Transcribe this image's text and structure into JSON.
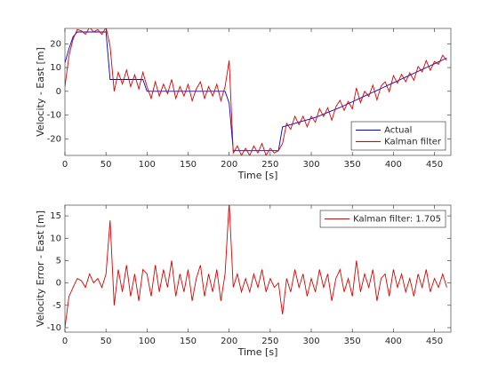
{
  "chart_data": [
    {
      "type": "line",
      "xlabel": "Time [s]",
      "ylabel": "Velocity - East [m]",
      "x": [
        0,
        5,
        10,
        15,
        20,
        25,
        30,
        35,
        40,
        45,
        50,
        55,
        60,
        65,
        70,
        75,
        80,
        85,
        90,
        95,
        100,
        105,
        110,
        115,
        120,
        125,
        130,
        135,
        140,
        145,
        150,
        155,
        160,
        165,
        170,
        175,
        180,
        185,
        190,
        195,
        200,
        205,
        210,
        215,
        220,
        225,
        230,
        235,
        240,
        245,
        250,
        255,
        260,
        265,
        270,
        275,
        280,
        285,
        290,
        295,
        300,
        305,
        310,
        315,
        320,
        325,
        330,
        335,
        340,
        345,
        350,
        355,
        360,
        365,
        370,
        375,
        380,
        385,
        390,
        395,
        400,
        405,
        410,
        415,
        420,
        425,
        430,
        435,
        440,
        445,
        450,
        455,
        460,
        465
      ],
      "series": [
        {
          "name": "Actual",
          "color": "#0000cc",
          "values": [
            12,
            18,
            23,
            25,
            25,
            25,
            25,
            25,
            25,
            25,
            25,
            5,
            5,
            5,
            5,
            5,
            5,
            5,
            5,
            5,
            0,
            0,
            0,
            0,
            0,
            0,
            0,
            0,
            0,
            0,
            0,
            0,
            0,
            0,
            0,
            0,
            0,
            0,
            0,
            0,
            -5,
            -25,
            -25,
            -25,
            -25,
            -25,
            -25,
            -25,
            -25,
            -25,
            -25,
            -25,
            -25,
            -15,
            -14.5,
            -14,
            -13.5,
            -13,
            -12.5,
            -12,
            -11.5,
            -11,
            -10.3,
            -9.6,
            -8.9,
            -8.2,
            -7.5,
            -6.8,
            -6,
            -5.2,
            -4.4,
            -3.6,
            -2.8,
            -2,
            -1.2,
            -0.4,
            0.4,
            1.2,
            2,
            2.8,
            3.6,
            4.4,
            5.2,
            6,
            6.8,
            7.6,
            8.4,
            9.2,
            10,
            10.8,
            11.6,
            12.4,
            13.2,
            14
          ]
        },
        {
          "name": "Kalman filter",
          "color": "#dd0000",
          "values": [
            2,
            15,
            22,
            26,
            25.5,
            24,
            27,
            25,
            26,
            24,
            27,
            19,
            0,
            8,
            3,
            9,
            2,
            7,
            1,
            8,
            2,
            -3,
            4,
            -2,
            3,
            -1,
            5,
            -3,
            2,
            -2,
            3,
            -4,
            1,
            4,
            -3,
            2,
            -2,
            3,
            -4,
            2,
            13,
            -26,
            -23,
            -27,
            -24,
            -27,
            -23,
            -26,
            -22,
            -27,
            -24,
            -26,
            -25,
            -22,
            -13.5,
            -16,
            -10.5,
            -14,
            -10.5,
            -15,
            -10.5,
            -13,
            -7.3,
            -10.6,
            -6.9,
            -12.2,
            -6.5,
            -3.8,
            -8,
            -4.2,
            -7.4,
            1.4,
            -4.8,
            0,
            -2.2,
            2.6,
            -3.6,
            2.2,
            4,
            -0.2,
            6.6,
            3.4,
            7.2,
            4,
            7.8,
            4.6,
            10.4,
            8.2,
            13,
            8.8,
            12.6,
            11.4,
            15.2,
            13
          ]
        }
      ],
      "xlim": [
        0,
        470
      ],
      "xticks": [
        0,
        50,
        100,
        150,
        200,
        250,
        300,
        350,
        400,
        450
      ],
      "ylim": [
        -27,
        26.5
      ],
      "yticks": [
        -20,
        -10,
        0,
        10,
        20
      ],
      "legend": "lower right"
    },
    {
      "type": "line",
      "xlabel": "Time [s]",
      "ylabel": "Velocity Error - East [m]",
      "x": [
        0,
        5,
        10,
        15,
        20,
        25,
        30,
        35,
        40,
        45,
        50,
        55,
        60,
        65,
        70,
        75,
        80,
        85,
        90,
        95,
        100,
        105,
        110,
        115,
        120,
        125,
        130,
        135,
        140,
        145,
        150,
        155,
        160,
        165,
        170,
        175,
        180,
        185,
        190,
        195,
        200,
        205,
        210,
        215,
        220,
        225,
        230,
        235,
        240,
        245,
        250,
        255,
        260,
        265,
        270,
        275,
        280,
        285,
        290,
        295,
        300,
        305,
        310,
        315,
        320,
        325,
        330,
        335,
        340,
        345,
        350,
        355,
        360,
        365,
        370,
        375,
        380,
        385,
        390,
        395,
        400,
        405,
        410,
        415,
        420,
        425,
        430,
        435,
        440,
        445,
        450,
        455,
        460,
        465
      ],
      "series": [
        {
          "name": "Kalman filter: 1.705",
          "color": "#dd0000",
          "values": [
            -10,
            -3,
            -1,
            1,
            0.5,
            -1,
            2,
            0,
            1,
            -1,
            2,
            14,
            -5,
            3,
            -2,
            4,
            -3,
            2,
            -4,
            3,
            2,
            -3,
            4,
            -2,
            3,
            -1,
            5,
            -3,
            2,
            -2,
            3,
            -4,
            1,
            4,
            -3,
            2,
            -2,
            3,
            -4,
            2,
            18,
            -1,
            2,
            -2,
            1,
            -2,
            2,
            -1,
            3,
            -2,
            1,
            -1,
            0,
            -7,
            1,
            -2,
            3,
            -1,
            2,
            -3,
            1,
            -2,
            3,
            -1,
            2,
            -4,
            1,
            3,
            -2,
            1,
            -3,
            5,
            -2,
            2,
            -1,
            3,
            -4,
            1,
            2,
            -3,
            3,
            -1,
            2,
            -2,
            1,
            -3,
            2,
            -1,
            3,
            -2,
            1,
            -1,
            2,
            -1
          ]
        }
      ],
      "xlim": [
        0,
        470
      ],
      "xticks": [
        0,
        50,
        100,
        150,
        200,
        250,
        300,
        350,
        400,
        450
      ],
      "ylim": [
        -11,
        17.4
      ],
      "yticks": [
        -10,
        -5,
        0,
        5,
        10,
        15
      ],
      "legend": "upper right"
    }
  ]
}
